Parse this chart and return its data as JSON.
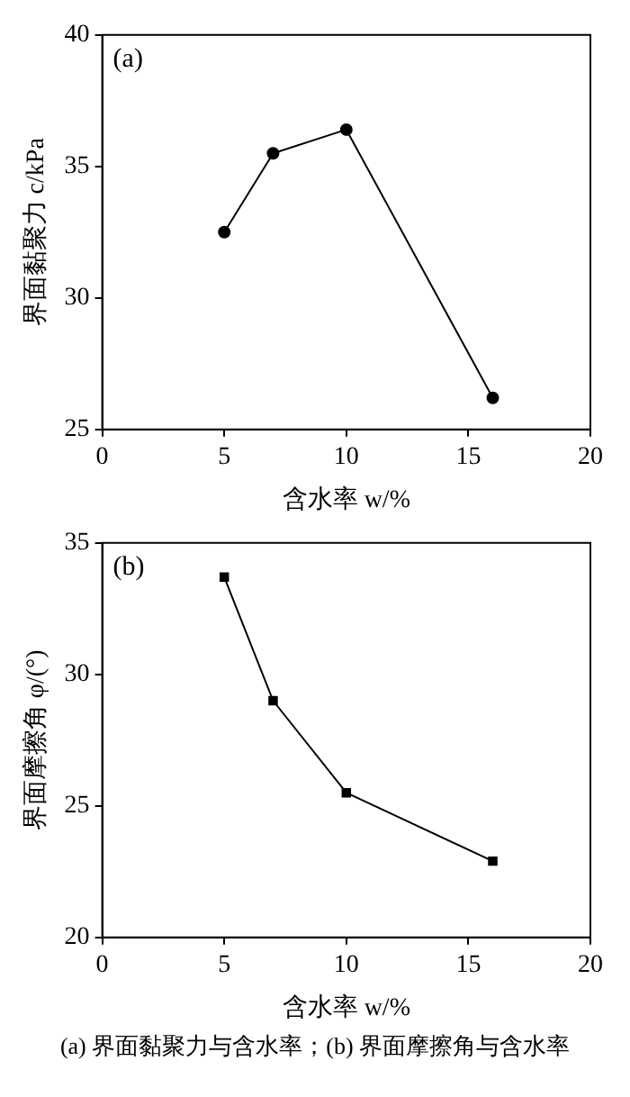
{
  "chart_data": [
    {
      "type": "line",
      "xlabel": "含水率 w/%",
      "ylabel": "界面黏聚力 c/kPa",
      "annotations": [
        "(a)"
      ],
      "marker": "circle",
      "line_style": "solid",
      "grid": false,
      "legend": false,
      "x": [
        5,
        7,
        10,
        16
      ],
      "xlim": [
        0,
        20
      ],
      "xticks": [
        0,
        5,
        10,
        15,
        20
      ],
      "ylim": [
        25,
        40
      ],
      "yticks": [
        25,
        30,
        35,
        40
      ],
      "series": [
        {
          "color": "#000000",
          "values": [
            32.5,
            35.5,
            36.4,
            26.2
          ]
        }
      ]
    },
    {
      "type": "line",
      "xlabel": "含水率 w/%",
      "ylabel": "界面摩擦角 φ/(°)",
      "annotations": [
        "(b)",
        "(a) 界面黏聚力与含水率；(b) 界面摩擦角与含水率"
      ],
      "marker": "square",
      "line_style": "solid",
      "grid": false,
      "legend": false,
      "x": [
        5,
        7,
        10,
        16
      ],
      "xlim": [
        0,
        20
      ],
      "xticks": [
        0,
        5,
        10,
        15,
        20
      ],
      "ylim": [
        20,
        35
      ],
      "yticks": [
        20,
        25,
        30,
        35
      ],
      "series": [
        {
          "color": "#000000",
          "values": [
            33.7,
            29.0,
            25.5,
            22.9
          ]
        }
      ]
    }
  ]
}
